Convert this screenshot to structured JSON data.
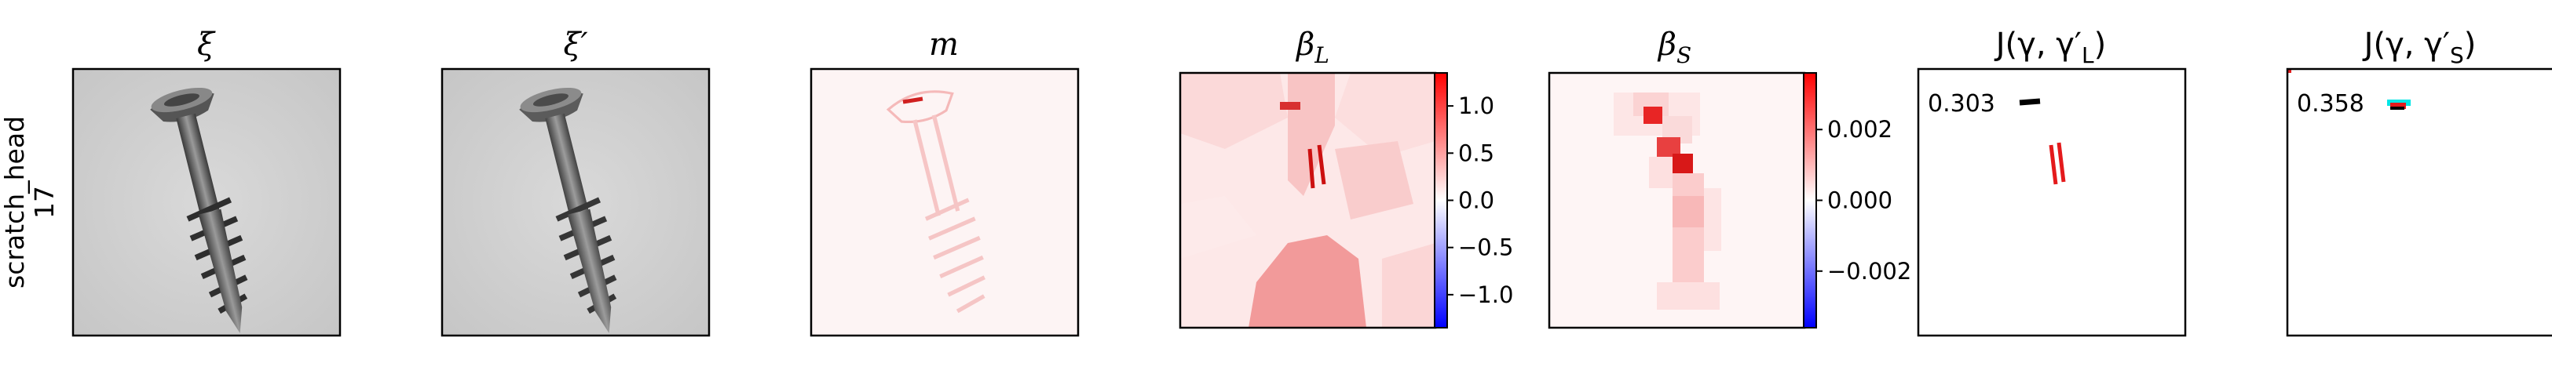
{
  "row_label": {
    "line1": "scratch_head",
    "line2": "17"
  },
  "panels": [
    {
      "title": "ξ"
    },
    {
      "title": "ξ′"
    },
    {
      "title": "m"
    },
    {
      "title": "β",
      "subscript": "L"
    },
    {
      "title": "β",
      "subscript": "S"
    },
    {
      "title": "J(γ, γ′",
      "subscript": "L",
      "suffix": ")"
    },
    {
      "title": "J(γ, γ′",
      "subscript": "S",
      "suffix": ")"
    }
  ],
  "colorbars": {
    "beta_L": {
      "ticks": [
        "1.0",
        "0.5",
        "0.0",
        "−0.5",
        "−1.0"
      ],
      "values": [
        1.0,
        0.5,
        0.0,
        -0.5,
        -1.0
      ],
      "range": [
        -1.35,
        1.35
      ]
    },
    "beta_S": {
      "ticks": [
        "0.002",
        "0.000",
        "−0.002"
      ],
      "values": [
        0.002,
        0.0,
        -0.002
      ],
      "range": [
        -0.0036,
        0.0036
      ]
    }
  },
  "scores": {
    "J_L": "0.303",
    "J_S": "0.358"
  },
  "colors": {
    "positive": "#e41a1c",
    "negative": "#1f1fe0",
    "mask_overlay": "#00e5e5"
  }
}
